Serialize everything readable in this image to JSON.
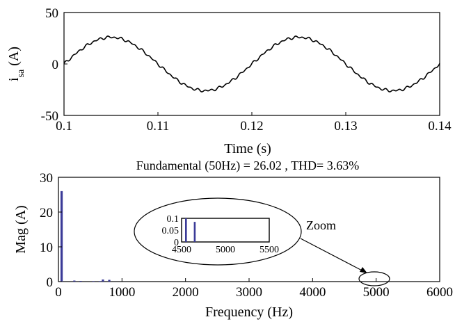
{
  "chart_data": [
    {
      "type": "line",
      "title": "",
      "xlabel": "Time (s)",
      "ylabel": {
        "main": "i",
        "sub": "sa",
        "unit": " (A)"
      },
      "xlim": [
        0.1,
        0.14
      ],
      "ylim": [
        -50,
        50
      ],
      "xticks": [
        "0.1",
        "0.11",
        "0.12",
        "0.13",
        "0.14"
      ],
      "yticks": [
        "50",
        "0",
        "-50"
      ],
      "grid": false,
      "series": [
        {
          "name": "",
          "color": "#000000",
          "frequency_hz": 50,
          "amplitude": 26,
          "x": [
            0.1,
            0.1025,
            0.105,
            0.1075,
            0.11,
            0.1125,
            0.115,
            0.1175,
            0.12,
            0.1225,
            0.125,
            0.1275,
            0.13,
            0.1325,
            0.135,
            0.1375,
            0.14
          ],
          "y": [
            0,
            18,
            26,
            18,
            0,
            -18,
            -26,
            -18,
            0,
            18,
            26,
            18,
            0,
            -18,
            -26,
            -18,
            0
          ]
        }
      ]
    },
    {
      "type": "bar",
      "title": "Fundamental (50Hz) = 26.02 , THD= 3.63%",
      "xlabel": "Frequency (Hz)",
      "ylabel": "Mag (A)",
      "xlim": [
        0,
        6000
      ],
      "ylim": [
        0,
        30
      ],
      "xticks": [
        "0",
        "1000",
        "2000",
        "3000",
        "4000",
        "5000",
        "6000"
      ],
      "yticks": [
        "30",
        "20",
        "10",
        "0"
      ],
      "grid": false,
      "bar_color": "#3b3b98",
      "bars": [
        {
          "x": 50,
          "y": 26.02
        },
        {
          "x": 250,
          "y": 0.3
        },
        {
          "x": 350,
          "y": 0.2
        },
        {
          "x": 550,
          "y": 0.15
        },
        {
          "x": 650,
          "y": 0.15
        },
        {
          "x": 700,
          "y": 0.6
        },
        {
          "x": 800,
          "y": 0.5
        }
      ],
      "inset": {
        "annotation": "Zoom",
        "xlim": [
          4500,
          5500
        ],
        "ylim": [
          0,
          0.1
        ],
        "xticks": [
          "4500",
          "5000",
          "5500"
        ],
        "yticks": [
          "0.1",
          "0.05",
          "0"
        ],
        "bars": [
          {
            "x": 4550,
            "y": 0.1
          },
          {
            "x": 4650,
            "y": 0.085
          }
        ]
      }
    }
  ]
}
